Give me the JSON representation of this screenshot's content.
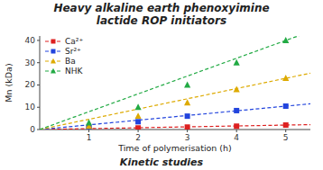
{
  "chart_data": {
    "type": "scatter",
    "title": "Heavy alkaline earth phenoxyimine\nlactide ROP initiators",
    "subtitle": "Kinetic studies",
    "x_label": "Time of polymerisation (h)",
    "y_label": "Mn (kDa)",
    "x": [
      1,
      2,
      3,
      4,
      5
    ],
    "series": [
      {
        "name": "Ca²⁺",
        "color": "#dd2020",
        "marker": "square",
        "line_style": "dashed",
        "values": [
          0.3,
          0.7,
          1.1,
          1.5,
          2.0
        ]
      },
      {
        "name": "Sr²⁺",
        "color": "#2244dd",
        "marker": "square",
        "line_style": "dashed",
        "values": [
          0.8,
          3.5,
          6.0,
          8.5,
          10.5
        ]
      },
      {
        "name": "Ba",
        "color": "#ddaa00",
        "marker": "triangle",
        "line_style": "dashed",
        "values": [
          1.5,
          6.0,
          12.0,
          18.0,
          23.0
        ]
      },
      {
        "name": "NHK",
        "color": "#22aa44",
        "marker": "triangle",
        "line_style": "dashed",
        "values": [
          3.0,
          10.0,
          20.0,
          30.0,
          40.0
        ]
      }
    ],
    "xlim": [
      0,
      5.5
    ],
    "ylim": [
      0,
      42
    ],
    "xticks": [
      1,
      2,
      3,
      4,
      5
    ],
    "yticks": [
      0,
      10,
      20,
      30,
      40
    ],
    "legend": "upper left",
    "grid": false
  }
}
